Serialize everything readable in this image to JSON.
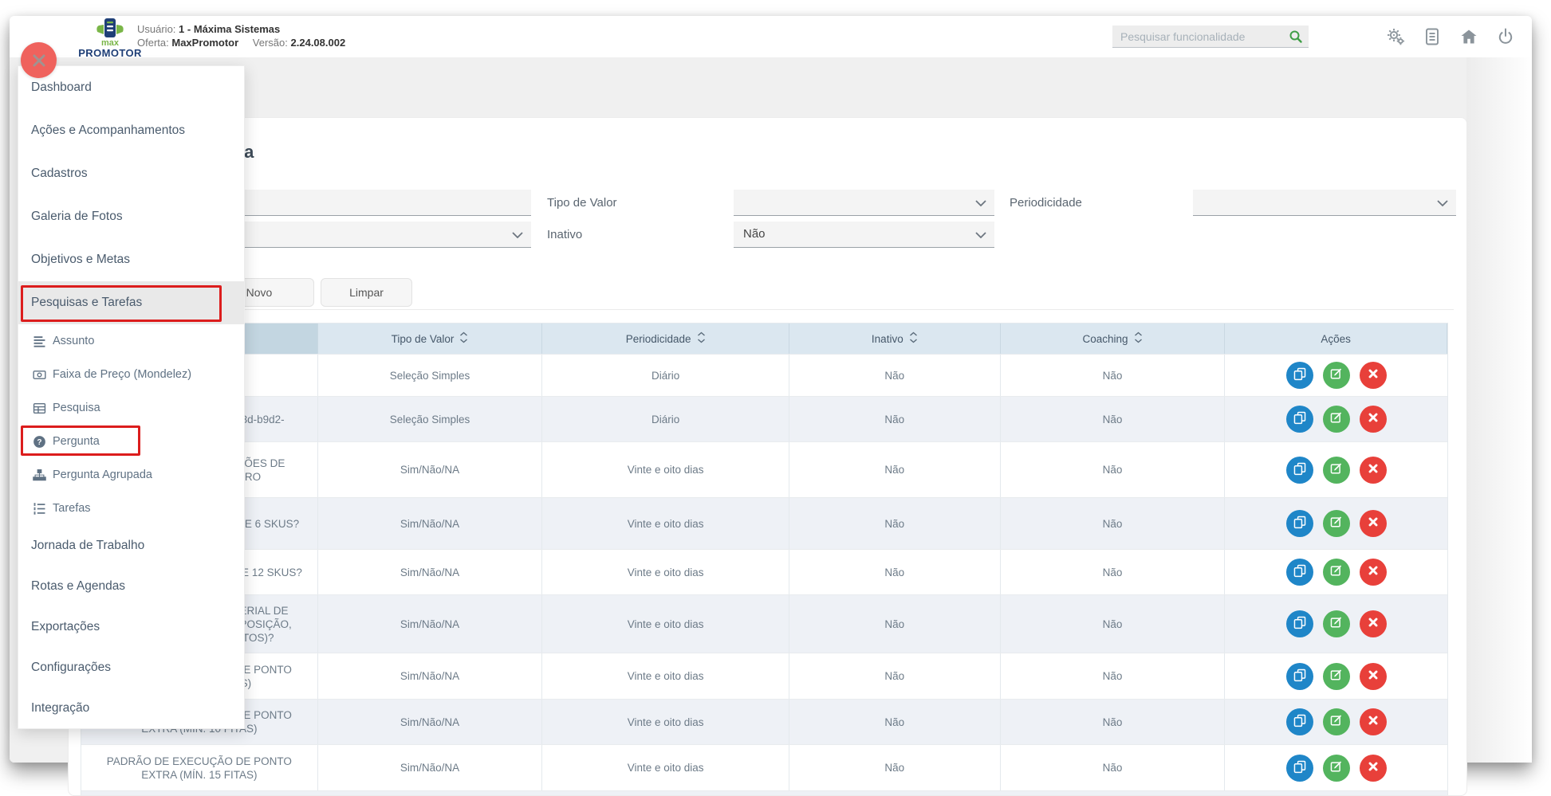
{
  "window": {
    "logo": {
      "line1": "max",
      "line2": "PROMOTOR"
    },
    "user": {
      "label": "Usuário:",
      "value": "1 - Máxima Sistemas"
    },
    "offer": {
      "label": "Oferta:",
      "value": "MaxPromotor"
    },
    "version": {
      "label": "Versão:",
      "value": "2.24.08.002"
    },
    "search": {
      "placeholder": "Pesquisar funcionalidade"
    },
    "top_icons": [
      "cogs",
      "document",
      "home",
      "power"
    ]
  },
  "sidebar": {
    "items": [
      {
        "label": "Dashboard",
        "kind": "main"
      },
      {
        "label": "Ações e Acompanhamentos",
        "kind": "main"
      },
      {
        "label": "Cadastros",
        "kind": "main"
      },
      {
        "label": "Galeria de Fotos",
        "kind": "main"
      },
      {
        "label": "Objetivos e Metas",
        "kind": "main"
      },
      {
        "label": "Pesquisas e Tarefas",
        "kind": "main",
        "active": true,
        "highlighted": true
      },
      {
        "label": "Assunto",
        "kind": "sub",
        "icon": "align-left"
      },
      {
        "label": "Faixa de Preço (Mondelez)",
        "kind": "sub",
        "icon": "money"
      },
      {
        "label": "Pesquisa",
        "kind": "sub",
        "icon": "table"
      },
      {
        "label": "Pergunta",
        "kind": "sub",
        "icon": "question-circle",
        "highlighted": true
      },
      {
        "label": "Pergunta Agrupada",
        "kind": "sub",
        "icon": "sitemap"
      },
      {
        "label": "Tarefas",
        "kind": "sub",
        "icon": "task-list"
      },
      {
        "label": "Jornada de Trabalho",
        "kind": "main"
      },
      {
        "label": "Rotas e Agendas",
        "kind": "main"
      },
      {
        "label": "Exportações",
        "kind": "main"
      },
      {
        "label": "Configurações",
        "kind": "main"
      },
      {
        "label": "Integração",
        "kind": "main"
      }
    ]
  },
  "page": {
    "title": "Pergunta",
    "filters": {
      "descricao": {
        "label": "",
        "value": "",
        "type": "input"
      },
      "tipo_de_valor": {
        "label": "Tipo de Valor",
        "value": "",
        "type": "select"
      },
      "periodicidade": {
        "label": "Periodicidade",
        "value": "",
        "type": "select"
      },
      "assunto": {
        "label": "",
        "value": "",
        "type": "select"
      },
      "inativo": {
        "label": "Inativo",
        "value": "Não",
        "type": "select"
      }
    },
    "buttons": {
      "novo": "Novo",
      "limpar": "Limpar"
    }
  },
  "table": {
    "columns": [
      {
        "label": "",
        "sortable": true
      },
      {
        "label": "Tipo de Valor",
        "sortable": true
      },
      {
        "label": "Periodicidade",
        "sortable": true
      },
      {
        "label": "Inativo",
        "sortable": true
      },
      {
        "label": "Coaching",
        "sortable": true
      },
      {
        "label": "Ações",
        "sortable": false
      }
    ],
    "row_actions": [
      "copy",
      "edit",
      "delete"
    ],
    "rows": [
      {
        "descricao": "",
        "tipo_de_valor": "Seleção Simples",
        "periodicidade": "Diário",
        "inativo": "Não",
        "coaching": "Não"
      },
      {
        "descricao": "COPY - e0c47f3a-8a19-453d-b9d2-",
        "tipo_de_valor": "Seleção Simples",
        "periodicidade": "Diário",
        "inativo": "Não",
        "coaching": "Não"
      },
      {
        "descricao": "VOCÊ APLICOU OS PADRÕES DE EXECUÇÃO - PRIMEIRO",
        "tipo_de_valor": "Sim/Não/NA",
        "periodicidade": "Vinte e oito dias",
        "inativo": "Não",
        "coaching": "Não"
      },
      {
        "descricao": "O FREEZER POSSUI MAIS DE 6 SKUS?",
        "tipo_de_valor": "Sim/Não/NA",
        "periodicidade": "Vinte e oito dias",
        "inativo": "Não",
        "coaching": "Não"
      },
      {
        "descricao": "O FREEZER POSSUI MAIS DE 12 SKUS?",
        "tipo_de_valor": "Sim/Não/NA",
        "periodicidade": "Vinte e oito dias",
        "inativo": "Não",
        "coaching": "Não"
      },
      {
        "descricao": "PONTO EXTRA COM MATERIAL DE COMUNICAÇÃO (ILHA, EXPOSIÇÃO, DISPLAY DE CHOCOLATOS)?",
        "tipo_de_valor": "Sim/Não/NA",
        "periodicidade": "Vinte e oito dias",
        "inativo": "Não",
        "coaching": "Não"
      },
      {
        "descricao": "PADRÃO DE EXECUÇÃO DE PONTO EXTRA (TERMINAIS)",
        "tipo_de_valor": "Sim/Não/NA",
        "periodicidade": "Vinte e oito dias",
        "inativo": "Não",
        "coaching": "Não"
      },
      {
        "descricao": "PADRÃO DE EXECUÇÃO DE PONTO EXTRA (MÍN. 10 FITAS)",
        "tipo_de_valor": "Sim/Não/NA",
        "periodicidade": "Vinte e oito dias",
        "inativo": "Não",
        "coaching": "Não"
      },
      {
        "descricao": "PADRÃO DE EXECUÇÃO DE PONTO EXTRA (MÍN. 15 FITAS)",
        "tipo_de_valor": "Sim/Não/NA",
        "periodicidade": "Vinte e oito dias",
        "inativo": "Não",
        "coaching": "Não"
      }
    ]
  },
  "colors": {
    "action_copy_blue": "#1f86c8",
    "action_edit_green": "#53b45e",
    "action_delete_red": "#e8403a",
    "table_header_bg": "#dbe7f0",
    "table_header_first_bg": "#c3d6e1",
    "highlight_red": "#dc1d1d",
    "close_button_red": "#ef625d",
    "search_icon_green": "#3f9e46",
    "logo_green": "#7ab648",
    "logo_navy": "#1f3f77"
  }
}
